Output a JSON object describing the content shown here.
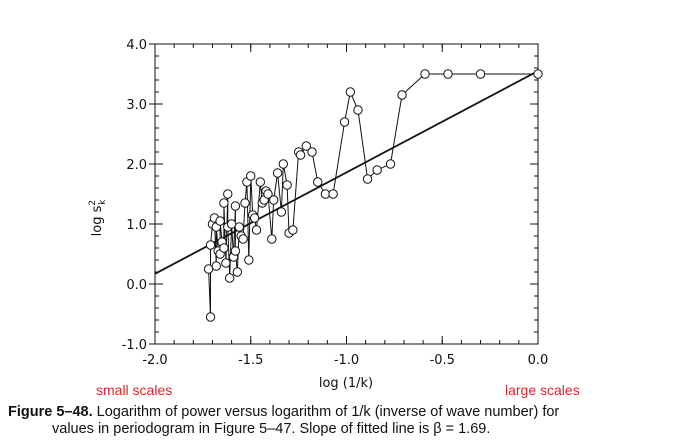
{
  "chart_data": {
    "type": "scatter",
    "xlabel": "log (1/k)",
    "ylabel": "log s",
    "ylabel_superscript": "2",
    "ylabel_subscript": "k",
    "xlim": [
      -2.0,
      0.0
    ],
    "ylim": [
      -1.0,
      4.0
    ],
    "x_ticks": [
      {
        "value": -2.0,
        "label": "-2.0"
      },
      {
        "value": -1.5,
        "label": "-1.5"
      },
      {
        "value": -1.0,
        "label": "-1.0"
      },
      {
        "value": -0.5,
        "label": "-0.5"
      },
      {
        "value": 0.0,
        "label": "0.0"
      }
    ],
    "y_ticks": [
      {
        "value": -1.0,
        "label": "-1.0"
      },
      {
        "value": 0.0,
        "label": "0.0"
      },
      {
        "value": 1.0,
        "label": "1.0"
      },
      {
        "value": 2.0,
        "label": "2.0"
      },
      {
        "value": 3.0,
        "label": "3.0"
      },
      {
        "value": 4.0,
        "label": "4.0"
      }
    ],
    "annotations": {
      "left": "small scales",
      "right": "large scales",
      "color": "#e3242b"
    },
    "fitted_line": {
      "slope": 1.69,
      "x": [
        -2.0,
        0.0
      ],
      "y": [
        0.17,
        3.55
      ]
    },
    "series": [
      {
        "x": [
          -1.72,
          -1.71,
          -1.71,
          -1.7,
          -1.69,
          -1.68,
          -1.68,
          -1.67,
          -1.66,
          -1.66,
          -1.65,
          -1.64,
          -1.64,
          -1.63,
          -1.62,
          -1.62,
          -1.61,
          -1.6,
          -1.59,
          -1.58,
          -1.58,
          -1.57,
          -1.56,
          -1.55,
          -1.54,
          -1.53,
          -1.52,
          -1.51,
          -1.5,
          -1.49,
          -1.48,
          -1.47,
          -1.45,
          -1.44,
          -1.43,
          -1.42,
          -1.41,
          -1.39,
          -1.38,
          -1.36,
          -1.34,
          -1.33,
          -1.31,
          -1.3,
          -1.28,
          -1.25,
          -1.24,
          -1.21,
          -1.18,
          -1.15,
          -1.11,
          -1.07,
          -1.01,
          -0.98,
          -0.94,
          -0.89,
          -0.84,
          -0.77,
          -0.71,
          -0.59,
          -0.47,
          -0.3,
          0.0
        ],
        "y": [
          0.25,
          -0.55,
          0.65,
          1.0,
          1.1,
          0.3,
          0.95,
          0.55,
          0.5,
          1.05,
          0.7,
          0.6,
          1.35,
          0.35,
          1.5,
          0.95,
          0.1,
          1.0,
          0.45,
          1.3,
          0.55,
          0.2,
          0.95,
          0.8,
          0.75,
          1.35,
          1.7,
          0.4,
          1.8,
          1.15,
          1.1,
          0.9,
          1.7,
          1.35,
          1.4,
          1.55,
          1.5,
          0.75,
          1.4,
          1.85,
          1.2,
          2.0,
          1.65,
          0.85,
          0.9,
          2.2,
          2.15,
          2.3,
          2.2,
          1.7,
          1.5,
          1.5,
          2.7,
          3.2,
          2.9,
          1.75,
          1.9,
          2.0,
          3.15,
          3.5,
          3.5,
          3.5,
          3.5
        ]
      }
    ]
  },
  "caption": {
    "label": "Figure 5–48.",
    "line1": " Logarithm of power versus logarithm of 1/k (inverse of wave number) for",
    "line2": "values in periodogram in Figure 5–47. Slope of fitted line is β = 1.69."
  }
}
